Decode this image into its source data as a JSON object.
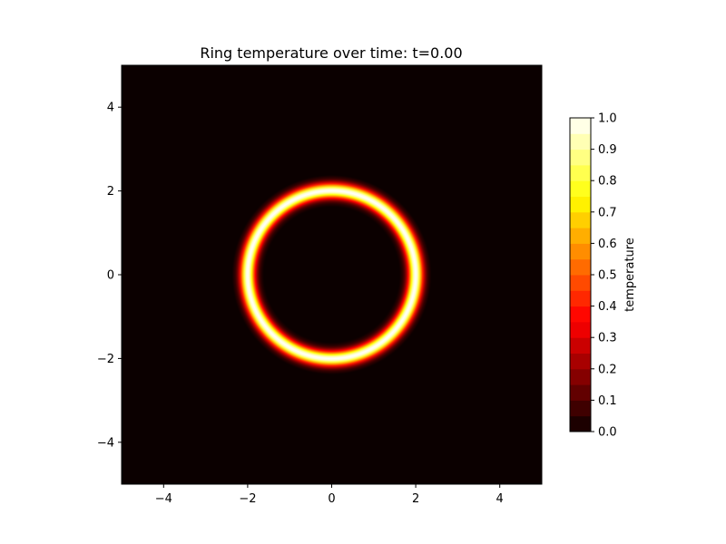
{
  "chart_data": {
    "type": "heatmap",
    "title": "Ring temperature over time: t=0.00",
    "xlabel": "",
    "ylabel": "",
    "xlim": [
      -5,
      5
    ],
    "ylim": [
      -5,
      5
    ],
    "x_ticks": [
      -4,
      -2,
      0,
      2,
      4
    ],
    "y_ticks": [
      -4,
      -2,
      0,
      2,
      4
    ],
    "x_tick_labels": [
      "−4",
      "−2",
      "0",
      "2",
      "4"
    ],
    "y_tick_labels": [
      "−4",
      "−2",
      "0",
      "2",
      "4"
    ],
    "grid": false,
    "field": {
      "shape": "ring",
      "center": [
        0,
        0
      ],
      "radius": 2.0,
      "ring_halfwidth": 0.2,
      "peak_value": 1.0,
      "background_value": 0.0
    },
    "colormap": "hot",
    "colorbar": {
      "label": "temperature",
      "range": [
        0.0,
        1.0
      ],
      "levels": 20,
      "ticks": [
        0.0,
        0.1,
        0.2,
        0.3,
        0.4,
        0.5,
        0.6,
        0.7,
        0.8,
        0.9,
        1.0
      ],
      "tick_labels": [
        "0.0",
        "0.1",
        "0.2",
        "0.3",
        "0.4",
        "0.5",
        "0.6",
        "0.7",
        "0.8",
        "0.9",
        "1.0"
      ],
      "placement": "right"
    }
  }
}
